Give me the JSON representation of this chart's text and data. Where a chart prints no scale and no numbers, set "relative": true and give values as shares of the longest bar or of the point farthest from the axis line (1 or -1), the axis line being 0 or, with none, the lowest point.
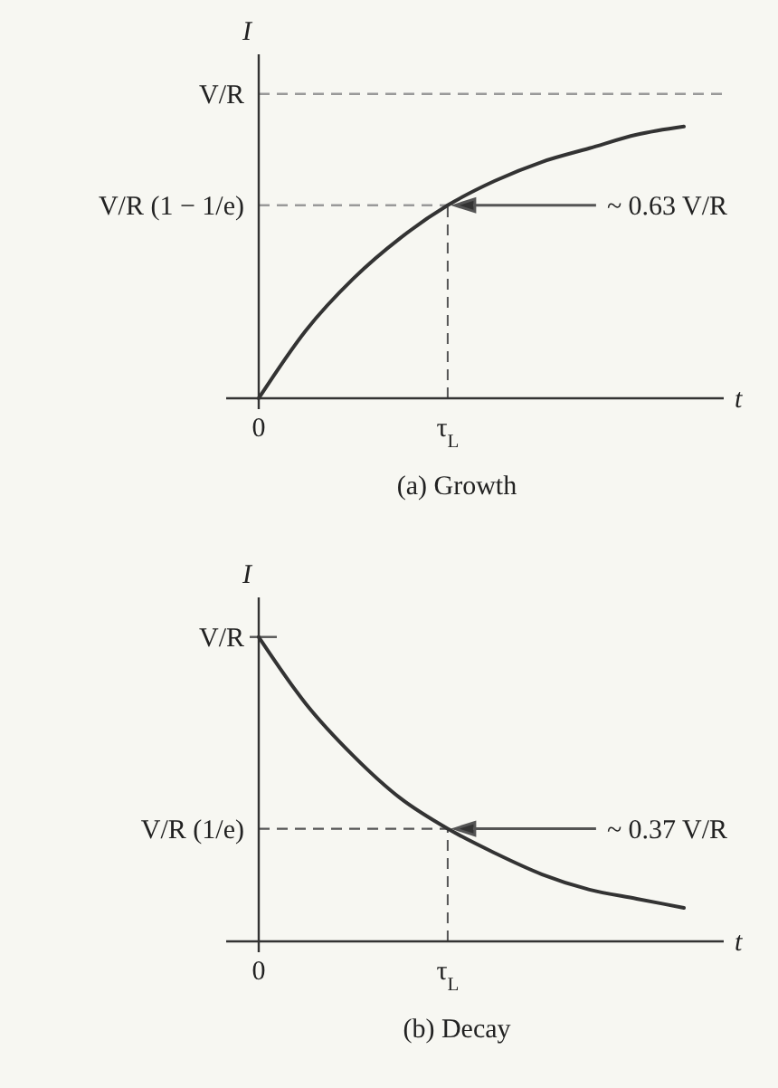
{
  "chart_data": [
    {
      "type": "line",
      "title": "(a) Growth",
      "xlabel": "t",
      "ylabel": "I",
      "relative": true,
      "categories": [
        "0",
        null,
        null,
        null,
        "τ$_{L}$",
        null,
        null,
        null,
        null,
        null
      ],
      "series": [
        {
          "color": "#333333",
          "values": [
            0,
            0.25,
            0.44,
            0.59,
            0.71,
            0.8,
            0.87,
            0.92,
            0.97,
            1
          ]
        }
      ],
      "ref_lines": [
        {
          "axis": "y",
          "value": 1.12,
          "label": "V/R",
          "color": "#999999",
          "line_style": "dashed"
        },
        {
          "axis": "y",
          "value": 0.71,
          "label": "V/R (1 − 1/e)",
          "color": "#999999",
          "line_style": "dashed"
        },
        {
          "axis": "x",
          "value": "τ$_{L}$",
          "color": "#555555",
          "line_style": "dashed"
        }
      ],
      "annotations": [
        "~ 0.63 V/R"
      ],
      "marker": "none",
      "line_style": "solid"
    },
    {
      "type": "line",
      "title": "(b) Decay",
      "xlabel": "t",
      "ylabel": "I",
      "relative": true,
      "categories": [
        "0",
        null,
        null,
        null,
        "τ$_{L}$",
        null,
        null,
        null,
        null,
        null
      ],
      "series": [
        {
          "color": "#333333",
          "values": [
            1,
            0.78,
            0.61,
            0.47,
            0.37,
            0.29,
            0.22,
            0.17,
            0.14,
            0.11
          ]
        }
      ],
      "ref_lines": [
        {
          "axis": "y",
          "value": 1,
          "label": "V/R",
          "color": "#555555",
          "line_style": "solid"
        },
        {
          "axis": "y",
          "value": 0.37,
          "label": "V/R (1/e)",
          "color": "#555555",
          "line_style": "dashed"
        },
        {
          "axis": "x",
          "value": "τ$_{L}$",
          "color": "#555555",
          "line_style": "dashed"
        }
      ],
      "annotations": [
        "~ 0.37 V/R"
      ],
      "marker": "none",
      "line_style": "solid"
    }
  ]
}
